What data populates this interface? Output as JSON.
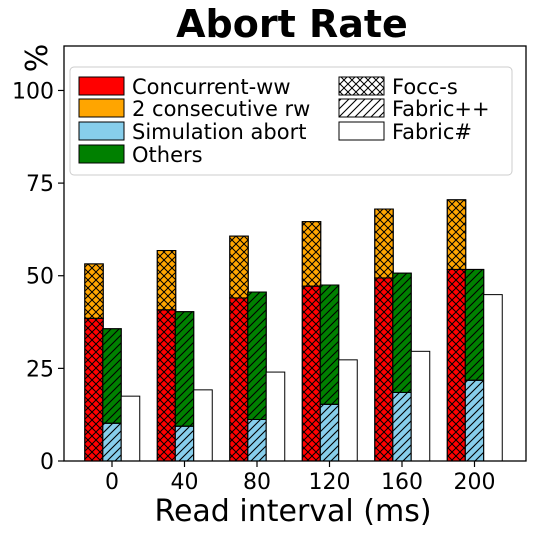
{
  "chart_data": {
    "type": "bar",
    "title": "Abort Rate",
    "xlabel": "Read interval (ms)",
    "ylabel": "%",
    "categories": [
      "0",
      "40",
      "80",
      "120",
      "160",
      "200"
    ],
    "ylim": [
      0,
      112
    ],
    "yticks": [
      "0",
      "25",
      "50",
      "75",
      "100"
    ],
    "grid": false,
    "legend_position": "top",
    "cause_legend": [
      {
        "name": "Concurrent-ww",
        "color": "#ff0000"
      },
      {
        "name": "2 consecutive rw",
        "color": "#ffa500"
      },
      {
        "name": "Simulation abort",
        "color": "#87ceeb"
      },
      {
        "name": "Others",
        "color": "#008000"
      }
    ],
    "system_legend": [
      {
        "name": "Focc-s",
        "hatch": "crosshatch"
      },
      {
        "name": "Fabric++",
        "hatch": "diagonal"
      },
      {
        "name": "Fabric#",
        "hatch": "none"
      }
    ],
    "series": [
      {
        "name": "Focc-s",
        "hatch": "crosshatch",
        "segments": [
          {
            "cause": "Concurrent-ww",
            "values": [
              38.5,
              40.8,
              44.0,
              47.2,
              49.4,
              51.7
            ]
          },
          {
            "cause": "2 consecutive rw",
            "values": [
              14.7,
              16.0,
              16.7,
              17.4,
              18.6,
              18.8
            ]
          }
        ],
        "totals": [
          53.2,
          56.8,
          60.7,
          64.6,
          68.0,
          70.5
        ]
      },
      {
        "name": "Fabric++",
        "hatch": "diagonal",
        "segments": [
          {
            "cause": "Simulation abort",
            "values": [
              10.2,
              9.4,
              11.2,
              15.3,
              18.5,
              21.8
            ]
          },
          {
            "cause": "Others",
            "values": [
              25.5,
              30.9,
              34.4,
              32.2,
              32.2,
              29.9
            ]
          }
        ],
        "totals": [
          35.7,
          40.3,
          45.6,
          47.5,
          50.7,
          51.7
        ]
      },
      {
        "name": "Fabric#",
        "hatch": "none",
        "segments": [
          {
            "cause": "Fabric#",
            "values": [
              17.5,
              19.2,
              24.0,
              27.3,
              29.6,
              44.9
            ]
          }
        ],
        "totals": [
          17.5,
          19.2,
          24.0,
          27.3,
          29.6,
          44.9
        ]
      }
    ]
  }
}
